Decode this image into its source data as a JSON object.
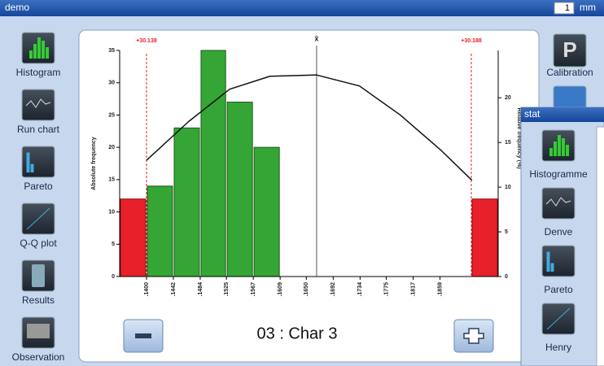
{
  "window": {
    "title": "demo",
    "value": "1",
    "unit": "mm"
  },
  "sidebar": [
    "Histogram",
    "Run chart",
    "Pareto",
    "Q-Q plot",
    "Results",
    "Observation"
  ],
  "right_panel": {
    "button_letter": "P",
    "label": "Calibration"
  },
  "stat_window": {
    "title": "stat",
    "items": [
      "Histogramme",
      "Denve",
      "Pareto",
      "Henry"
    ]
  },
  "footer": {
    "label": "03 : Char 3"
  },
  "chart_data": {
    "type": "histogram",
    "ylabel": "Absolute frequency",
    "y2label": "Relative frequency (%)",
    "bins": [
      0.14,
      0.1442,
      0.1484,
      0.1525,
      0.1567,
      0.1609
    ],
    "counts": [
      14,
      23,
      35,
      27,
      20
    ],
    "color": "#35a535",
    "out_of_spec": {
      "color": "#e8202a",
      "low_bins": [
        0.1358,
        0.14
      ],
      "low_count": 12,
      "high_bins": [
        0.1908,
        0.195
      ],
      "high_count": 12
    },
    "limits": [
      {
        "value": 0.14,
        "label": "+30.138"
      },
      {
        "value": 0.1908,
        "label": "+30.188"
      }
    ],
    "limit_color": "#e8202a",
    "mean": {
      "value": 0.1666,
      "label": "x̄"
    },
    "curve": {
      "x": [
        0.14,
        0.1466,
        0.153,
        0.1593,
        0.1666,
        0.1733,
        0.1797,
        0.1861,
        0.1909
      ],
      "values": [
        18,
        24,
        29,
        31,
        31.2,
        29.5,
        25,
        19.5,
        14.9
      ],
      "color": "#111111"
    },
    "xlim": [
      0.1358,
      0.195
    ],
    "xticks": [
      {
        "value": 0.14,
        "label": ".1400"
      },
      {
        "value": 0.1442,
        "label": ".1442"
      },
      {
        "value": 0.1484,
        "label": ".1484"
      },
      {
        "value": 0.1525,
        "label": ".1525"
      },
      {
        "value": 0.1567,
        "label": ".1567"
      },
      {
        "value": 0.1609,
        "label": ".1609"
      },
      {
        "value": 0.165,
        "label": ".1650"
      },
      {
        "value": 0.1692,
        "label": ".1692"
      },
      {
        "value": 0.1734,
        "label": ".1734"
      },
      {
        "value": 0.1775,
        "label": ".1775"
      },
      {
        "value": 0.1817,
        "label": ".1817"
      },
      {
        "value": 0.1859,
        "label": ".1859"
      }
    ],
    "ylim": [
      0,
      35
    ],
    "yticks": [
      0,
      5,
      10,
      15,
      20,
      25,
      30,
      35
    ],
    "y2lim": [
      0,
      25.3
    ],
    "y2ticks": [
      0,
      5,
      10,
      15,
      20
    ]
  }
}
